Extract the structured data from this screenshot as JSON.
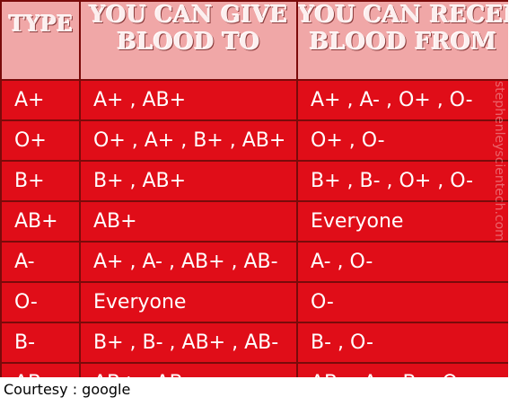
{
  "header": {
    "type": "TYPE",
    "give_line1": "YOU CAN GIVE",
    "give_line2": "BLOOD TO",
    "receive_line1": "YOU CAN RECEIVE",
    "receive_line2": "BLOOD FROM"
  },
  "rows": [
    {
      "type": "A+",
      "give": "A+ , AB+",
      "receive": "A+ , A- , O+ , O-"
    },
    {
      "type": "O+",
      "give": "O+ , A+ , B+ , AB+",
      "receive": "O+ , O-"
    },
    {
      "type": "B+",
      "give": "B+ , AB+",
      "receive": "B+ , B- , O+ , O-"
    },
    {
      "type": "AB+",
      "give": "AB+",
      "receive": "Everyone"
    },
    {
      "type": "A-",
      "give": "A+ , A- , AB+ , AB-",
      "receive": "A- , O-"
    },
    {
      "type": "O-",
      "give": "Everyone",
      "receive": "O-"
    },
    {
      "type": "B-",
      "give": "B+ , B- , AB+ , AB-",
      "receive": "B- , O-"
    },
    {
      "type": "AB-",
      "give": "AB+ , AB-",
      "receive": "AB- , A- , B- , O-"
    }
  ],
  "watermark": "stephenleyscientech.com",
  "credit": "Courtesy : google",
  "colors": {
    "cell_bg": "#e00d18",
    "header_bg": "#f0a7a7",
    "border": "#7a0a0a"
  }
}
